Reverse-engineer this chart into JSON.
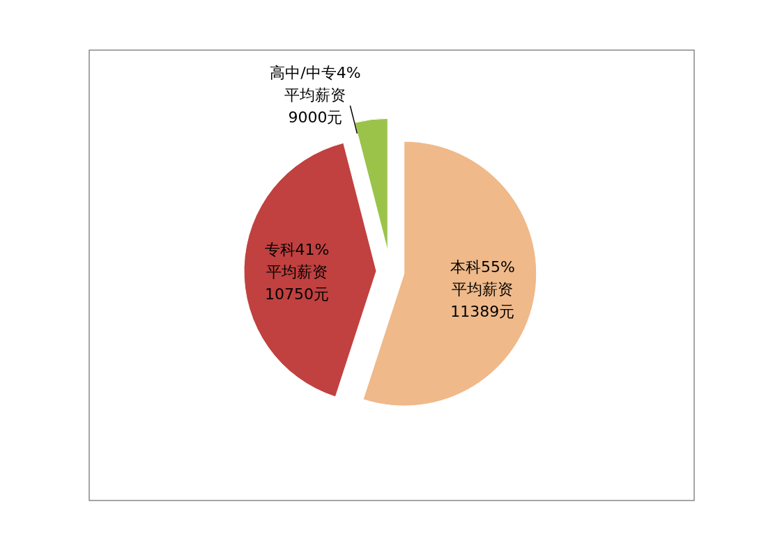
{
  "chart_data": {
    "type": "pie",
    "categories": [
      "本科",
      "专科",
      "高中/中专"
    ],
    "values": [
      55,
      41,
      4
    ],
    "colors": [
      "#efb98a",
      "#c0413f",
      "#9bc34a"
    ],
    "value_labels": [
      "55%",
      "41%",
      "4%"
    ],
    "annotations": [
      {
        "text": "平均薪资\n11389元",
        "x": "本科"
      },
      {
        "text": "平均薪资\n10750元",
        "x": "专科"
      },
      {
        "text": "平均薪资\n9000元",
        "x": "高中/中专"
      }
    ],
    "legend": false
  }
}
